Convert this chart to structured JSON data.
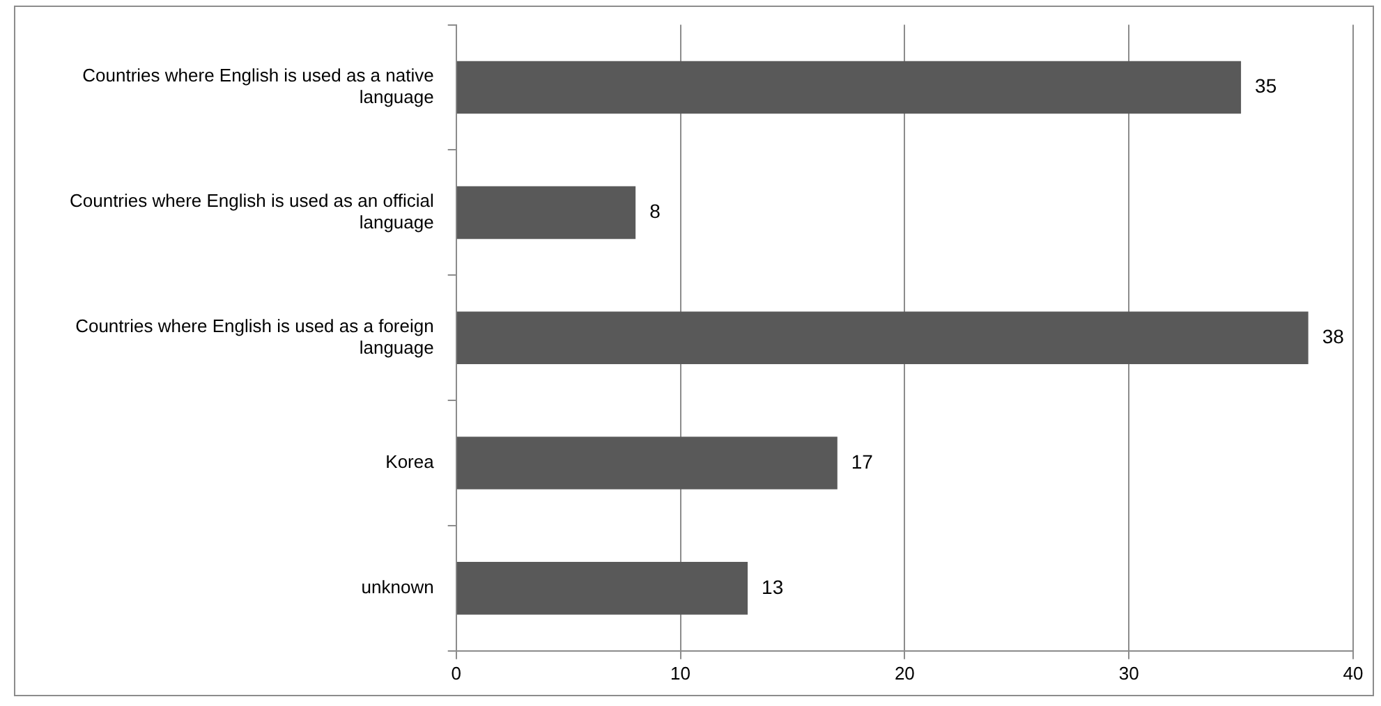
{
  "chart_data": {
    "type": "bar",
    "orientation": "horizontal",
    "categories": [
      "Countries where English is used as a native language",
      "Countries where English is used as an official language",
      "Countries where English is used as a foreign language",
      "Korea",
      "unknown"
    ],
    "values": [
      35,
      8,
      38,
      17,
      13
    ],
    "color": "#595959",
    "xlim": [
      0,
      40
    ],
    "xticks": [
      0,
      10,
      20,
      30,
      40
    ],
    "grid": "x",
    "data_labels": true,
    "legend": false
  }
}
